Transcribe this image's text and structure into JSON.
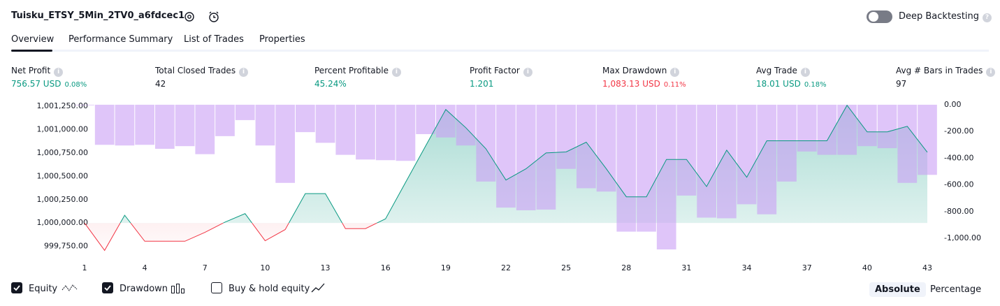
{
  "header": {
    "title": "Tuisku_ETSY_5Min_2TV0_a6fdcec1",
    "deep_backtesting": "Deep Backtesting",
    "deep_backtesting_on": false
  },
  "tabs": [
    "Overview",
    "Performance Summary",
    "List of Trades",
    "Properties"
  ],
  "active_tab": 0,
  "metrics": [
    {
      "label": "Net Profit",
      "value": "756.57 USD",
      "percent": "0.08%",
      "tone": "pos"
    },
    {
      "label": "Total Closed Trades",
      "value": "42",
      "tone": "neu"
    },
    {
      "label": "Percent Profitable",
      "value": "45.24%",
      "tone": "pos"
    },
    {
      "label": "Profit Factor",
      "value": "1.201",
      "tone": "pos"
    },
    {
      "label": "Max Drawdown",
      "value": "1,083.13 USD",
      "percent": "0.11%",
      "tone": "neg"
    },
    {
      "label": "Avg Trade",
      "value": "18.01 USD",
      "percent": "0.18%",
      "tone": "pos"
    },
    {
      "label": "Avg # Bars in Trades",
      "value": "97",
      "tone": "neu"
    }
  ],
  "chart_data": {
    "type": "combo",
    "x": [
      1,
      2,
      3,
      4,
      5,
      6,
      7,
      8,
      9,
      10,
      11,
      12,
      13,
      14,
      15,
      16,
      17,
      18,
      19,
      20,
      21,
      22,
      23,
      24,
      25,
      26,
      27,
      28,
      29,
      30,
      31,
      32,
      33,
      34,
      35,
      36,
      37,
      38,
      39,
      40,
      41,
      42,
      43
    ],
    "xlim": [
      1,
      43
    ],
    "xticks": [
      1,
      4,
      7,
      10,
      13,
      16,
      19,
      22,
      25,
      28,
      31,
      34,
      37,
      40,
      43
    ],
    "ylim": [
      999650,
      1001280
    ],
    "yticks": [
      {
        "value": 999750,
        "label": "999,750.00"
      },
      {
        "value": 1000000,
        "label": "1,000,000.00"
      },
      {
        "value": 1000250,
        "label": "1,000,250.00"
      },
      {
        "value": 1000500,
        "label": "1,000,500.00"
      },
      {
        "value": 1000750,
        "label": "1,000,750.00"
      },
      {
        "value": 1001000,
        "label": "1,001,000.00"
      },
      {
        "value": 1001250,
        "label": "1,001,250.00"
      }
    ],
    "y2lim": [
      -1130,
      10
    ],
    "y2ticks": [
      {
        "value": 0,
        "label": "0.00"
      },
      {
        "value": -200,
        "label": "-200.00"
      },
      {
        "value": -400,
        "label": "-400.00"
      },
      {
        "value": -600,
        "label": "-600.00"
      },
      {
        "value": -800,
        "label": "-800.00"
      },
      {
        "value": -1000,
        "label": "-1,000.00"
      }
    ],
    "baseline": 1000000,
    "series": [
      {
        "name": "Equity",
        "color": "#089981",
        "negative_color": "#f23645",
        "visible": true,
        "values": [
          1000000,
          999707,
          1000083,
          999805,
          999805,
          999805,
          999900,
          1000010,
          1000100,
          999810,
          999930,
          1000315,
          1000315,
          999940,
          999940,
          1000045,
          1000435,
          1000825,
          1001215,
          1001020,
          1000795,
          1000460,
          1000580,
          1000750,
          1000760,
          1000865,
          1000580,
          1000280,
          1000280,
          1000680,
          1000680,
          1000390,
          1000780,
          1000490,
          1000880,
          1000880,
          1000880,
          1000880,
          1001260,
          1000975,
          1000975,
          1001035,
          1000757
        ]
      },
      {
        "name": "Drawdown",
        "color": "#c99ef5",
        "axis": "y2",
        "visible": true,
        "values": [
          0,
          -300,
          -305,
          -300,
          -330,
          -310,
          -370,
          -235,
          -115,
          -305,
          -585,
          -205,
          -285,
          -375,
          -410,
          -415,
          -420,
          -220,
          -245,
          -305,
          -575,
          -770,
          -790,
          -785,
          -480,
          -625,
          -650,
          -950,
          -950,
          -1083.13,
          -680,
          -845,
          -850,
          -745,
          -820,
          -575,
          -350,
          -375,
          -375,
          -310,
          -325,
          -585,
          -525
        ]
      }
    ],
    "buy_hold": {
      "name": "Buy & hold equity",
      "visible": false
    }
  },
  "view_modes": [
    "Absolute",
    "Percentage"
  ],
  "active_view": 0
}
